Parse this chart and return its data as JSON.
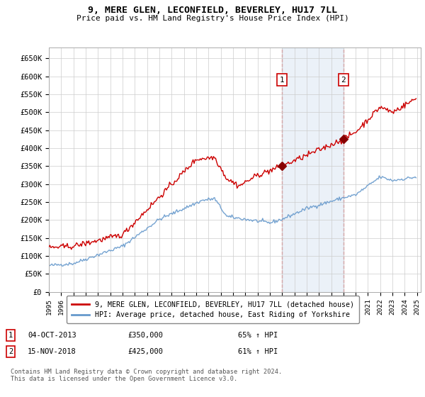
{
  "title": "9, MERE GLEN, LECONFIELD, BEVERLEY, HU17 7LL",
  "subtitle": "Price paid vs. HM Land Registry's House Price Index (HPI)",
  "ylim": [
    0,
    680000
  ],
  "yticks": [
    0,
    50000,
    100000,
    150000,
    200000,
    250000,
    300000,
    350000,
    400000,
    450000,
    500000,
    550000,
    600000,
    650000
  ],
  "ytick_labels": [
    "£0",
    "£50K",
    "£100K",
    "£150K",
    "£200K",
    "£250K",
    "£300K",
    "£350K",
    "£400K",
    "£450K",
    "£500K",
    "£550K",
    "£600K",
    "£650K"
  ],
  "house_color": "#cc0000",
  "hpi_color": "#6699cc",
  "sale1_date": 2014.0,
  "sale1_price": 350000,
  "sale2_date": 2019.0,
  "sale2_price": 425000,
  "legend_house": "9, MERE GLEN, LECONFIELD, BEVERLEY, HU17 7LL (detached house)",
  "legend_hpi": "HPI: Average price, detached house, East Riding of Yorkshire",
  "annotation1_date": "04-OCT-2013",
  "annotation1_price": "£350,000",
  "annotation1_hpi": "65% ↑ HPI",
  "annotation2_date": "15-NOV-2018",
  "annotation2_price": "£425,000",
  "annotation2_hpi": "61% ↑ HPI",
  "footer": "Contains HM Land Registry data © Crown copyright and database right 2024.\nThis data is licensed under the Open Government Licence v3.0."
}
